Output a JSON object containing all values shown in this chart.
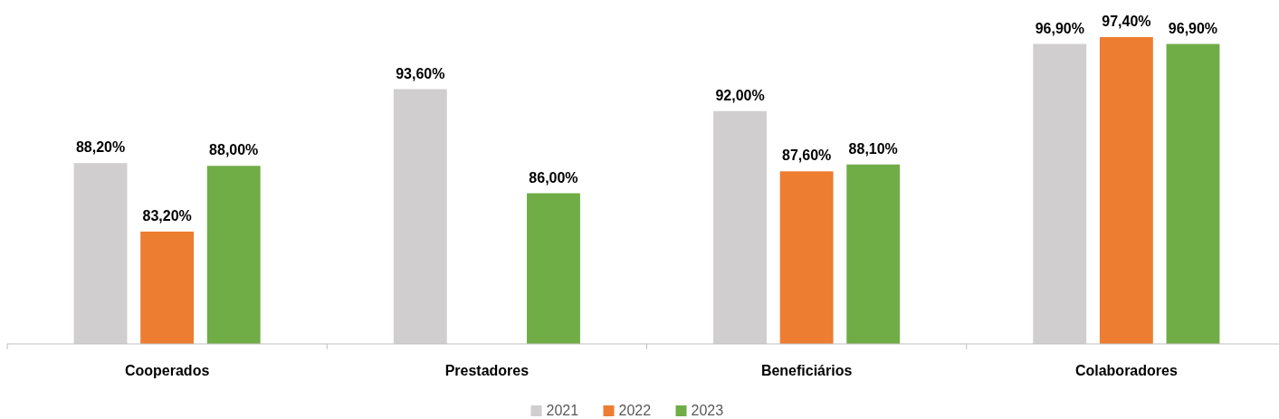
{
  "chart_data": {
    "type": "bar",
    "categories": [
      "Cooperados",
      "Prestadores",
      "Beneficiários",
      "Colaboradores"
    ],
    "ylim": [
      75,
      97.4
    ],
    "legend": "bottom",
    "grid": false,
    "series": [
      {
        "name": "2021",
        "color": "#d0cece",
        "values": [
          88.2,
          93.6,
          92.0,
          96.9
        ],
        "value_labels": [
          "88,20%",
          "93,60%",
          "92,00%",
          "96,90%"
        ]
      },
      {
        "name": "2022",
        "color": "#ed7d31",
        "values": [
          83.2,
          null,
          87.6,
          97.4
        ],
        "value_labels": [
          "83,20%",
          null,
          "87,60%",
          "97,40%"
        ]
      },
      {
        "name": "2023",
        "color": "#70ad47",
        "values": [
          88.0,
          86.0,
          88.1,
          96.9
        ],
        "value_labels": [
          "88,00%",
          "86,00%",
          "88,10%",
          "96,90%"
        ]
      }
    ]
  }
}
